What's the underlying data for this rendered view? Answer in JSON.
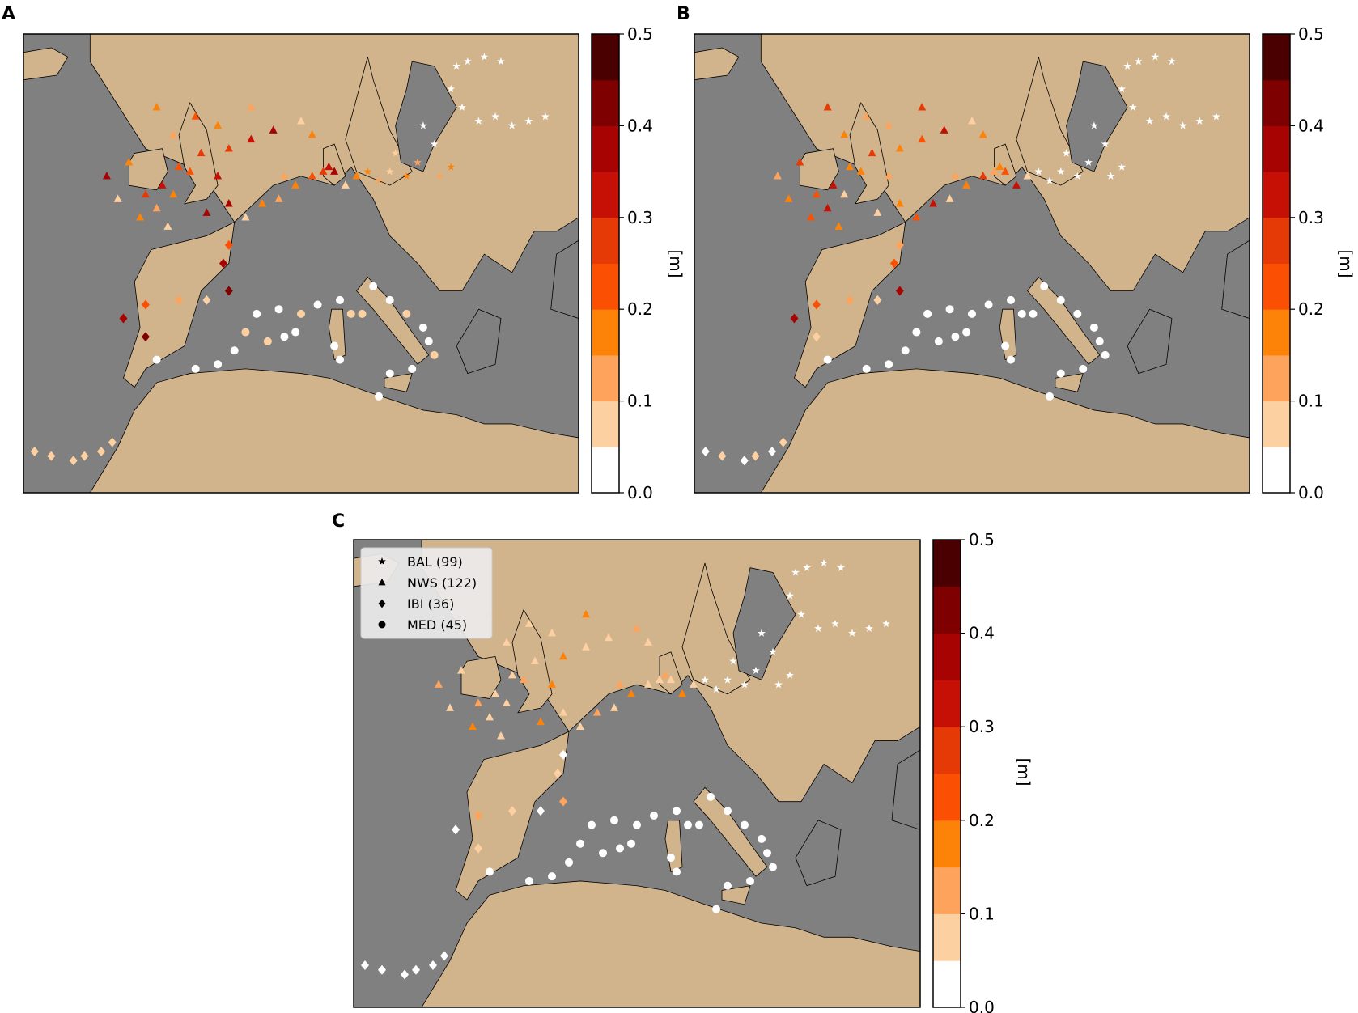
{
  "panels": [
    {
      "label": "A",
      "map": "map-a",
      "colorbar": "cbar-a",
      "unit": "[m]",
      "variant": "a"
    },
    {
      "label": "B",
      "map": "map-b",
      "colorbar": "cbar-b",
      "unit": "[m]",
      "variant": "b"
    },
    {
      "label": "C",
      "map": "map-c",
      "colorbar": "cbar-c",
      "unit": "[m]",
      "variant": "c"
    }
  ],
  "colorbar": {
    "min": 0.0,
    "max": 0.5,
    "ticks": [
      "0.0",
      "0.1",
      "0.2",
      "0.3",
      "0.4",
      "0.5"
    ],
    "levels": [
      "#ffffff",
      "#fdd0a2",
      "#fda35c",
      "#fd8208",
      "#fb5003",
      "#e63a06",
      "#c61005",
      "#a80303",
      "#7f0000",
      "#4a0000"
    ]
  },
  "legend": [
    {
      "symbol": "star",
      "label": "BAL (99)"
    },
    {
      "symbol": "triangle",
      "label": "NWS (122)"
    },
    {
      "symbol": "diamond",
      "label": "IBI (36)"
    },
    {
      "symbol": "circle",
      "label": "MED (45)"
    }
  ],
  "colors": {
    "land": "#d2b48c",
    "sea": "#808080",
    "coast": "#000000"
  }
}
